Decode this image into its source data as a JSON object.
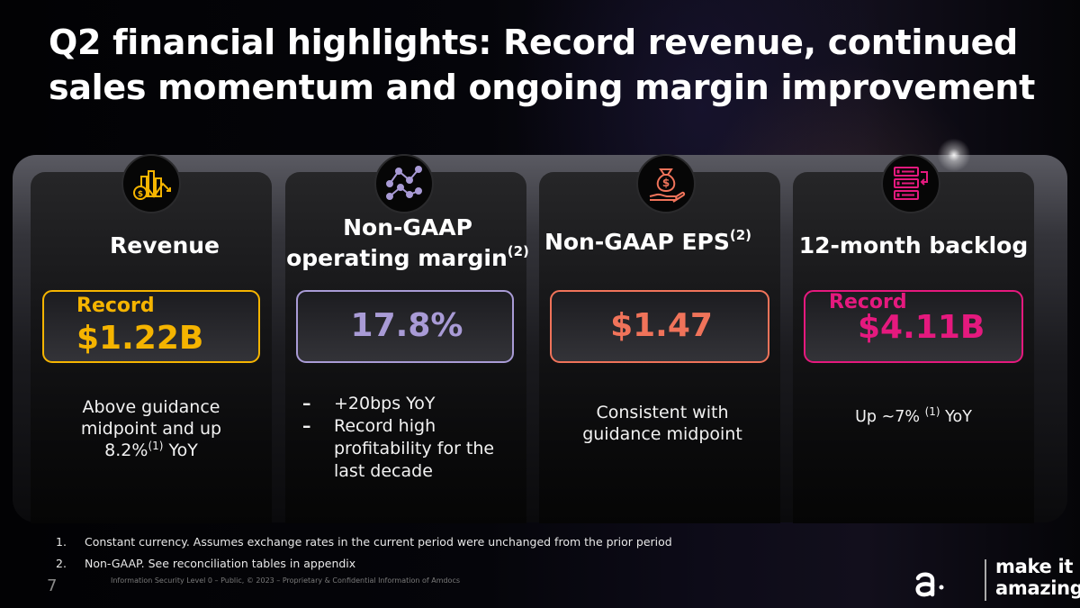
{
  "slide": {
    "title": "Q2 financial highlights: Record revenue, continued sales momentum and ongoing margin improvement",
    "page_number": "7",
    "legal": "Information Security Level 0 – Public, © 2023 – Proprietary & Confidential Information of Amdocs"
  },
  "cards": {
    "revenue": {
      "title": "Revenue",
      "badge": "Record",
      "value": "$1.22B",
      "desc_line1": "Above guidance",
      "desc_line2": "midpoint and up",
      "desc_line3_pre": "8.2%",
      "desc_line3_sup": "(1)",
      "desc_line3_post": " YoY",
      "accent": "#F5B400",
      "icon": "revenue-chart-icon"
    },
    "margin": {
      "title_line1": "Non-GAAP",
      "title_line2": "operating margin",
      "title_sup": "(2)",
      "value": "17.8%",
      "bullets": [
        "+20bps YoY",
        "Record high profitability for the last decade"
      ],
      "bullet_marker": "–",
      "accent": "#A99BD6",
      "icon": "line-graph-icon"
    },
    "eps": {
      "title": "Non-GAAP EPS",
      "title_sup": "(2)",
      "value": "$1.47",
      "desc_line1": "Consistent with",
      "desc_line2": "guidance midpoint",
      "accent": "#F0735A",
      "icon": "money-bag-hand-icon"
    },
    "backlog": {
      "title": "12-month backlog",
      "badge": "Record",
      "value": "$4.11B",
      "desc_pre": "Up ~7% ",
      "desc_sup": "(1)",
      "desc_post": " YoY",
      "accent": "#E5197E",
      "icon": "server-list-icon"
    }
  },
  "footnotes": [
    {
      "num": "1.",
      "text": "Constant currency. Assumes exchange rates in the current period were unchanged from the prior period"
    },
    {
      "num": "2.",
      "text": "Non-GAAP. See reconciliation tables in appendix"
    }
  ],
  "brand": {
    "tagline_line1": "make it",
    "tagline_line2": "amazing",
    "logo": "amdocs-logo-icon"
  }
}
